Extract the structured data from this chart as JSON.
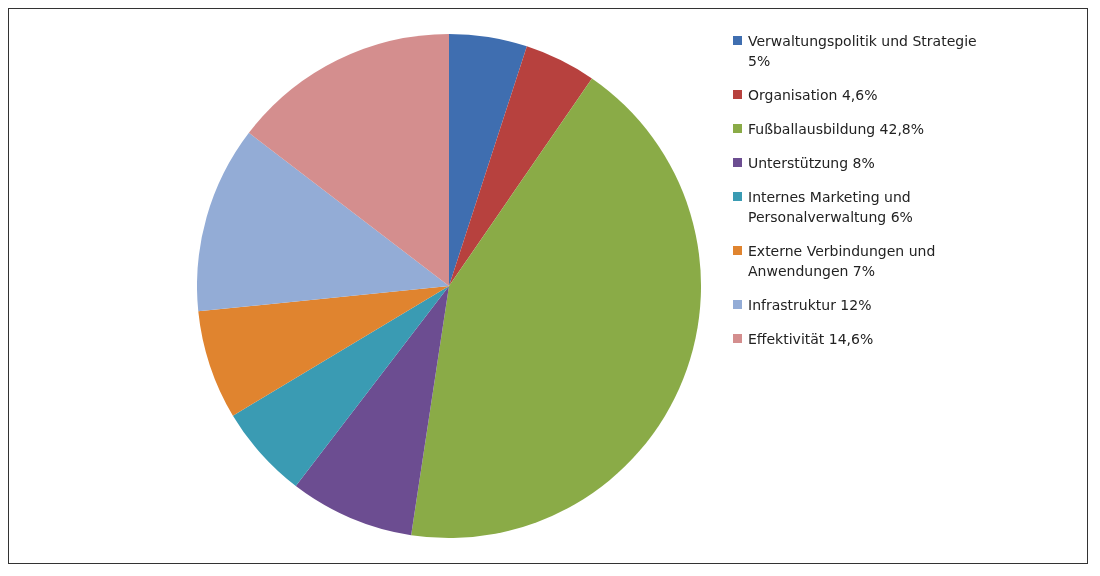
{
  "chart_data": {
    "type": "pie",
    "categories": [
      "Verwaltungspolitik und Strategie 5%",
      "Organisation 4,6%",
      "Fußballausbildung 42,8%",
      "Unterstützung 8%",
      "Internes Marketing und Personalverwaltung 6%",
      "Externe Verbindungen und Anwendungen 7%",
      "Infrastruktur 12%",
      "Effektivität 14,6%"
    ],
    "values": [
      5,
      4.6,
      42.8,
      8,
      6,
      7,
      12,
      14.6
    ],
    "colors": [
      "#3f6eb0",
      "#b7413e",
      "#8aab47",
      "#6c4d91",
      "#3a9bb3",
      "#e0842f",
      "#93acd6",
      "#d48e8e"
    ],
    "legend": "right"
  }
}
